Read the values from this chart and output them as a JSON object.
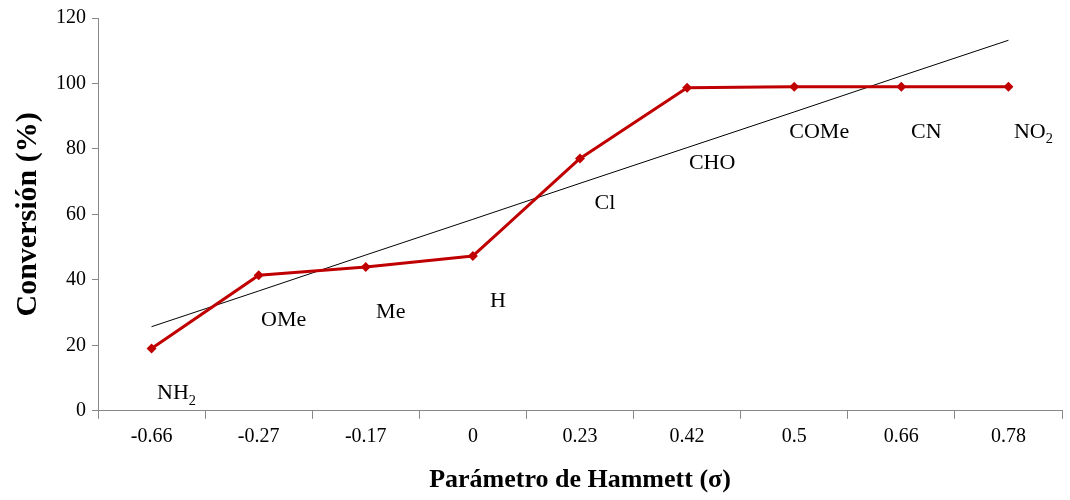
{
  "chart_data": {
    "type": "line",
    "xlabel": "Parámetro de Hammett (σ)",
    "ylabel": "Conversión (%)",
    "categories": [
      "-0.66",
      "-0.27",
      "-0.17",
      "0",
      "0.23",
      "0.42",
      "0.5",
      "0.66",
      "0.78"
    ],
    "series": [
      {
        "color": "#c00000",
        "values": [
          19,
          41.4,
          43.9,
          47.3,
          77.1,
          98.7,
          99,
          99,
          99
        ],
        "marker": "diamond",
        "line_style": "solid"
      },
      {
        "color": "#000000",
        "values": [
          25.7,
          36.6,
          47.6,
          58.5,
          69.5,
          80.4,
          91.3,
          102.3,
          113.2
        ],
        "marker": "none",
        "line_style": "solid"
      }
    ],
    "ylim": [
      0,
      120
    ],
    "yticks": [
      0,
      20,
      40,
      60,
      80,
      100,
      120
    ],
    "grid": false,
    "legend": false,
    "annotations": [
      {
        "text": "NH$_{2}$",
        "x": "-0.66",
        "y": 19
      },
      {
        "text": "OMe",
        "x": "-0.27",
        "y": 41.4
      },
      {
        "text": "Me",
        "x": "-0.17",
        "y": 43.9
      },
      {
        "text": "H",
        "x": "0",
        "y": 47.3
      },
      {
        "text": "Cl",
        "x": "0.23",
        "y": 77.1
      },
      {
        "text": "CHO",
        "x": "0.42",
        "y": 98.7
      },
      {
        "text": "COMe",
        "x": "0.5",
        "y": 99
      },
      {
        "text": "CN",
        "x": "0.66",
        "y": 99
      },
      {
        "text": "NO$_{2}$",
        "x": "0.78",
        "y": 99
      }
    ]
  }
}
